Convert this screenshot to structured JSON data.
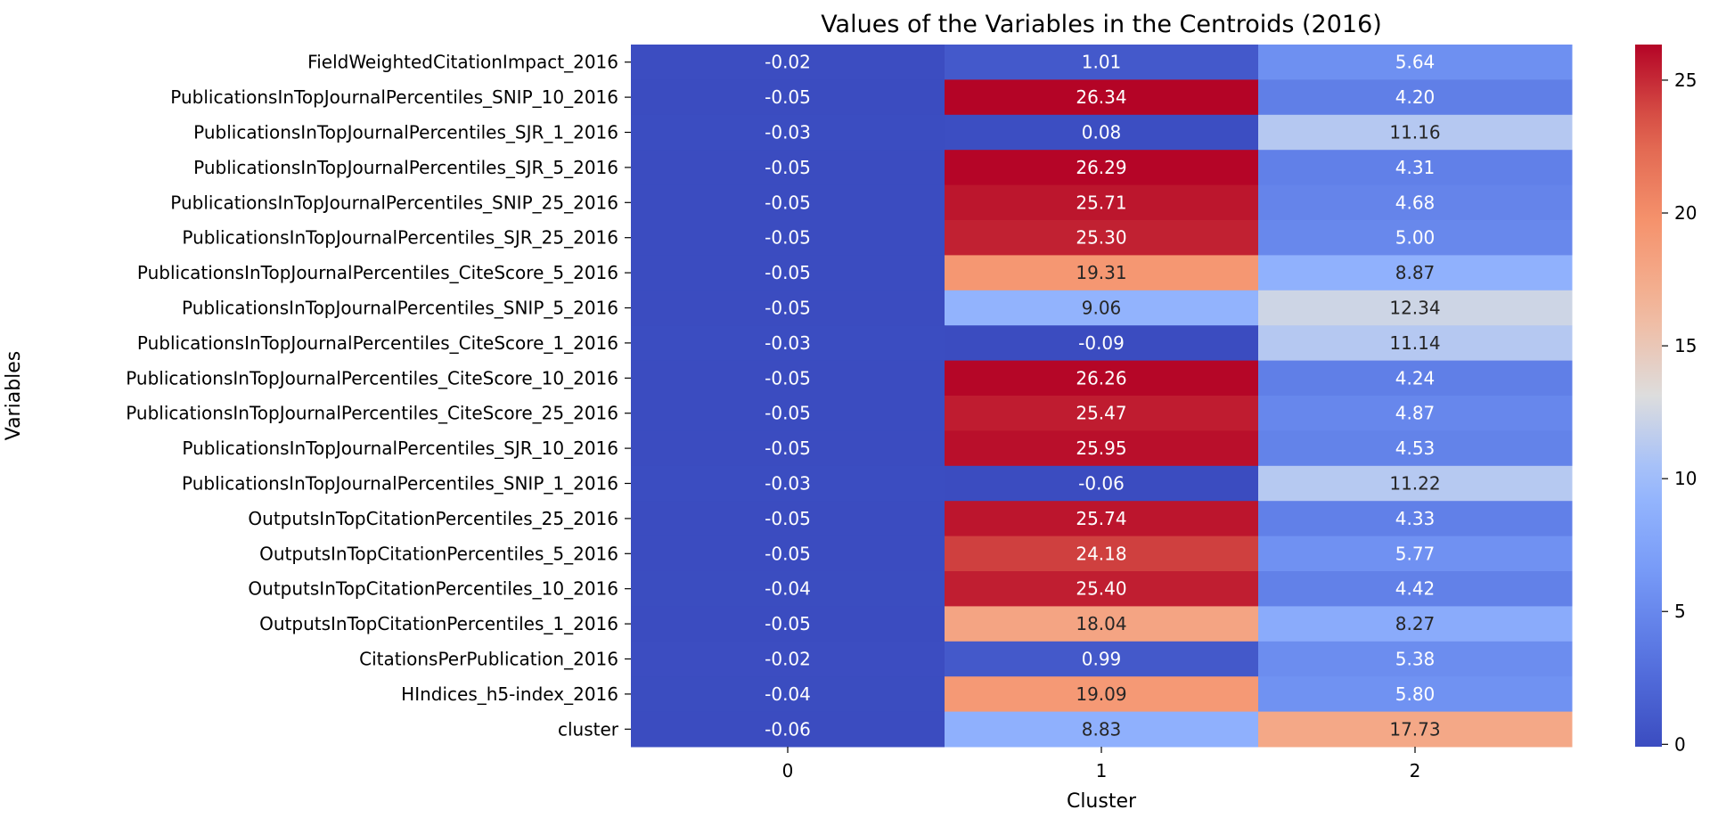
{
  "chart_data": {
    "type": "heatmap",
    "title": "Values of the Variables in the Centroids (2016)",
    "xlabel": "Cluster",
    "ylabel": "Variables",
    "x_categories": [
      "0",
      "1",
      "2"
    ],
    "y_categories": [
      "FieldWeightedCitationImpact_2016",
      "PublicationsInTopJournalPercentiles_SNIP_10_2016",
      "PublicationsInTopJournalPercentiles_SJR_1_2016",
      "PublicationsInTopJournalPercentiles_SJR_5_2016",
      "PublicationsInTopJournalPercentiles_SNIP_25_2016",
      "PublicationsInTopJournalPercentiles_SJR_25_2016",
      "PublicationsInTopJournalPercentiles_CiteScore_5_2016",
      "PublicationsInTopJournalPercentiles_SNIP_5_2016",
      "PublicationsInTopJournalPercentiles_CiteScore_1_2016",
      "PublicationsInTopJournalPercentiles_CiteScore_10_2016",
      "PublicationsInTopJournalPercentiles_CiteScore_25_2016",
      "PublicationsInTopJournalPercentiles_SJR_10_2016",
      "PublicationsInTopJournalPercentiles_SNIP_1_2016",
      "OutputsInTopCitationPercentiles_25_2016",
      "OutputsInTopCitationPercentiles_5_2016",
      "OutputsInTopCitationPercentiles_10_2016",
      "OutputsInTopCitationPercentiles_1_2016",
      "CitationsPerPublication_2016",
      "HIndices_h5-index_2016",
      "cluster"
    ],
    "values": [
      [
        -0.02,
        1.01,
        5.64
      ],
      [
        -0.05,
        26.34,
        4.2
      ],
      [
        -0.03,
        0.08,
        11.16
      ],
      [
        -0.05,
        26.29,
        4.31
      ],
      [
        -0.05,
        25.71,
        4.68
      ],
      [
        -0.05,
        25.3,
        5.0
      ],
      [
        -0.05,
        19.31,
        8.87
      ],
      [
        -0.05,
        9.06,
        12.34
      ],
      [
        -0.03,
        -0.09,
        11.14
      ],
      [
        -0.05,
        26.26,
        4.24
      ],
      [
        -0.05,
        25.47,
        4.87
      ],
      [
        -0.05,
        25.95,
        4.53
      ],
      [
        -0.03,
        -0.06,
        11.22
      ],
      [
        -0.05,
        25.74,
        4.33
      ],
      [
        -0.05,
        24.18,
        5.77
      ],
      [
        -0.04,
        25.4,
        4.42
      ],
      [
        -0.05,
        18.04,
        8.27
      ],
      [
        -0.02,
        0.99,
        5.38
      ],
      [
        -0.04,
        19.09,
        5.8
      ],
      [
        -0.06,
        8.83,
        17.73
      ]
    ],
    "colormap": "coolwarm",
    "vmin": -0.09,
    "vmax": 26.34,
    "colorbar_ticks": [
      0,
      5,
      10,
      15,
      20,
      25
    ],
    "annotation_format": "0.00",
    "legend": "colorbar-right"
  }
}
